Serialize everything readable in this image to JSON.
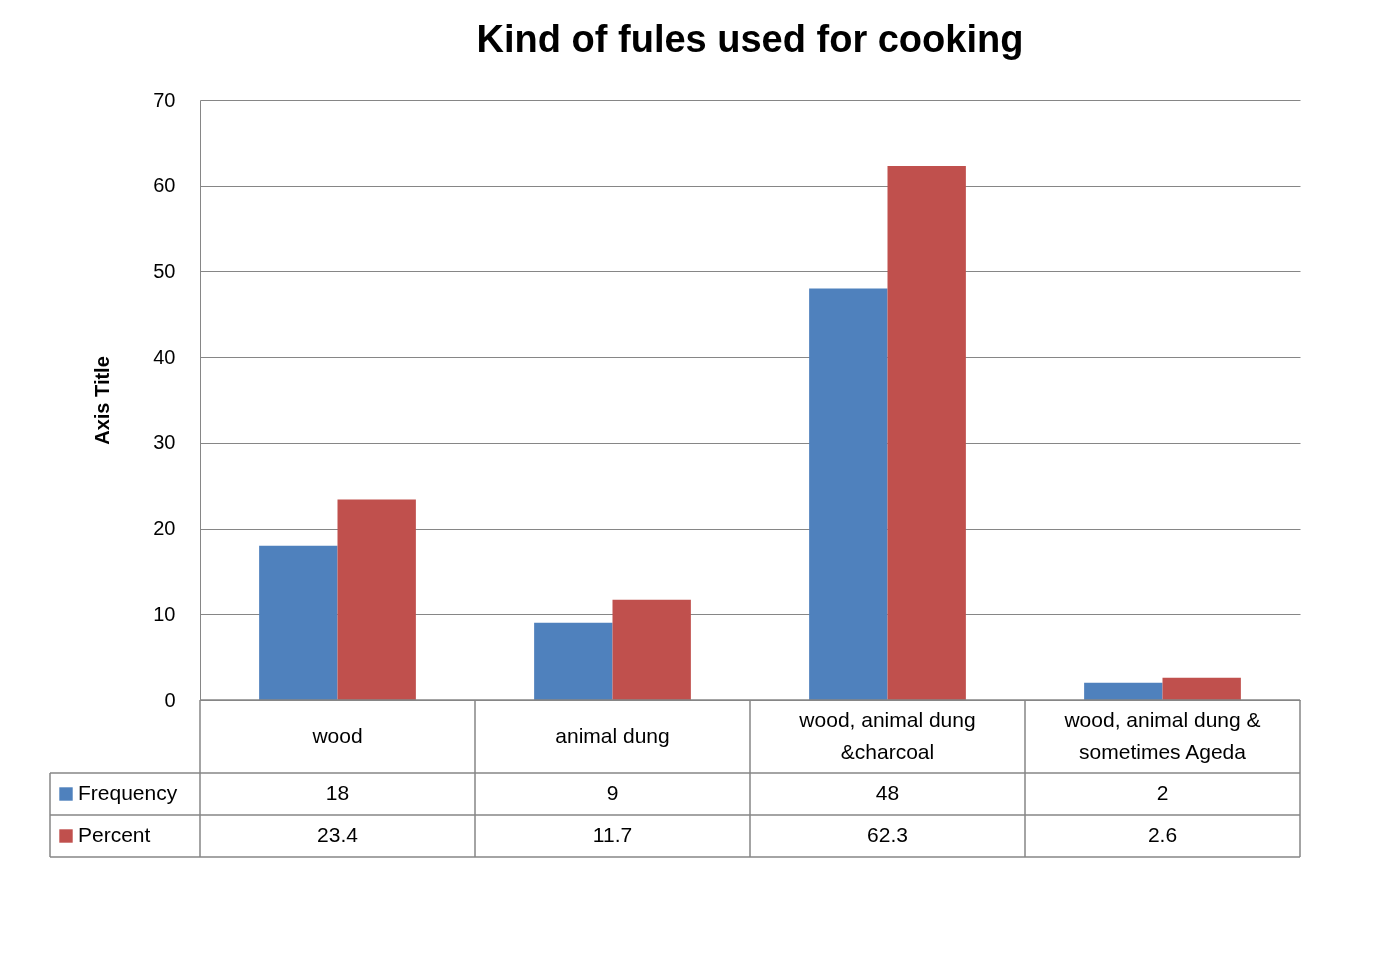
{
  "chart_data": {
    "type": "bar",
    "title": "Kind of fules used for cooking",
    "ylabel": "Axis Title",
    "categories": [
      "wood",
      "animal dung",
      "wood, animal dung &charcoal",
      "wood, animal dung & sometimes Ageda"
    ],
    "series": [
      {
        "name": "Frequency",
        "color": "#4f81bd",
        "values": [
          18,
          9,
          48,
          2
        ]
      },
      {
        "name": "Percent",
        "color": "#c0504d",
        "values": [
          23.4,
          11.7,
          62.3,
          2.6
        ]
      }
    ],
    "ylim": [
      0,
      70
    ],
    "yticks": [
      0,
      10,
      20,
      30,
      40,
      50,
      60,
      70
    ],
    "grid": "y",
    "legend": "bottom",
    "data_labels": true
  }
}
